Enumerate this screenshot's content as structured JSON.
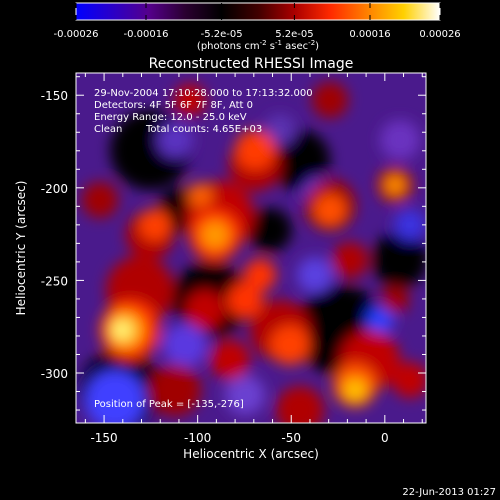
{
  "colorbar": {
    "tick_labels": [
      "-0.00026",
      "-0.00016",
      "-5.2e-05",
      "5.2e-05",
      "0.00016",
      "0.00026"
    ],
    "tick_values": [
      -0.00026,
      -0.00016,
      -5.2e-05,
      5.2e-05,
      0.00016,
      0.00026
    ],
    "min": -0.00026,
    "max": 0.00026,
    "units_prefix": "(photons cm",
    "units_sup1": "-2",
    "units_mid": " s",
    "units_sup2": "-1",
    "units_mid2": " asec",
    "units_sup3": "-2",
    "units_suffix": ")",
    "stops": [
      "#0000ff",
      "#2a00c8",
      "#55008c",
      "#2a0030",
      "#000000",
      "#400000",
      "#aa0000",
      "#ff2a00",
      "#ff8000",
      "#ffd000",
      "#ffffff"
    ]
  },
  "title": "Reconstructed RHESSI Image",
  "annotations": {
    "time_range": "29-Nov-2004 17:10:28.000 to 17:13:32.000",
    "detectors": "Detectors: 4F 5F 6F 7F 8F, Att 0",
    "energy": "Energy Range: 12.0 - 25.0 keV",
    "algorithm": "Clean",
    "total_counts": "Total counts: 4.65E+03",
    "peak_position": "Position of Peak = [-135,-276]"
  },
  "axes": {
    "xlabel": "Heliocentric X (arcsec)",
    "ylabel": "Heliocentric Y (arcsec)",
    "xlim": [
      -165,
      22
    ],
    "ylim": [
      -327,
      -138
    ],
    "x_ticks": [
      -150,
      -100,
      -50,
      0
    ],
    "x_tick_labels": [
      "-150",
      "-100",
      "-50",
      "0"
    ],
    "y_ticks": [
      -150,
      -200,
      -250,
      -300
    ],
    "y_tick_labels": [
      "-150",
      "-200",
      "-250",
      "-300"
    ]
  },
  "footer": {
    "date": "22-Jun-2013 01:27"
  }
}
